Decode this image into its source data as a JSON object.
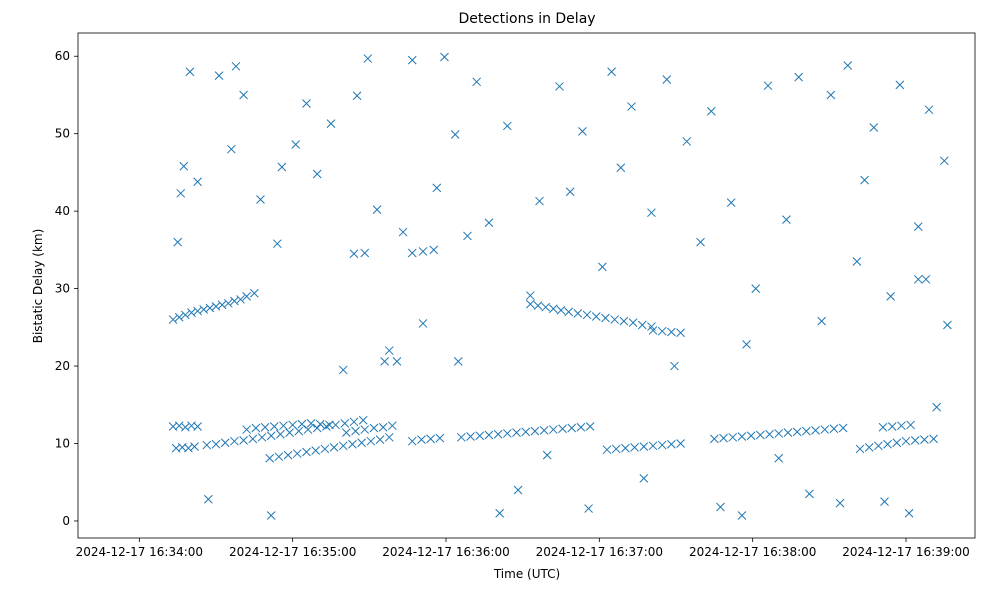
{
  "chart_data": {
    "type": "scatter",
    "title": "Detections in Delay",
    "xlabel": "Time (UTC)",
    "ylabel": "Bistatic Delay (km)",
    "x_start": "2024-12-17 16:34:00",
    "xlim": [
      -0.4,
      5.45
    ],
    "ylim": [
      -2.2,
      63
    ],
    "x_ticks": [
      {
        "x": 0,
        "label": "2024-12-17 16:34:00"
      },
      {
        "x": 1,
        "label": "2024-12-17 16:35:00"
      },
      {
        "x": 2,
        "label": "2024-12-17 16:36:00"
      },
      {
        "x": 3,
        "label": "2024-12-17 16:37:00"
      },
      {
        "x": 4,
        "label": "2024-12-17 16:38:00"
      },
      {
        "x": 5,
        "label": "2024-12-17 16:39:00"
      }
    ],
    "y_ticks": [
      0,
      10,
      20,
      30,
      40,
      50,
      60
    ],
    "grid": false,
    "marker": "x",
    "color": "#1f77b4",
    "series": [
      {
        "points": [
          [
            0.22,
            26.0
          ],
          [
            0.26,
            26.3
          ],
          [
            0.3,
            26.6
          ],
          [
            0.34,
            26.9
          ],
          [
            0.38,
            27.1
          ],
          [
            0.42,
            27.3
          ],
          [
            0.46,
            27.5
          ],
          [
            0.5,
            27.7
          ],
          [
            0.54,
            27.9
          ],
          [
            0.58,
            28.1
          ],
          [
            0.62,
            28.4
          ],
          [
            0.66,
            28.6
          ],
          [
            0.7,
            29.0
          ],
          [
            0.75,
            29.4
          ],
          [
            0.22,
            12.2
          ],
          [
            0.26,
            12.3
          ],
          [
            0.3,
            12.1
          ],
          [
            0.34,
            12.3
          ],
          [
            0.38,
            12.2
          ],
          [
            0.24,
            9.4
          ],
          [
            0.28,
            9.5
          ],
          [
            0.32,
            9.4
          ],
          [
            0.36,
            9.6
          ],
          [
            0.44,
            9.8
          ],
          [
            0.5,
            9.9
          ],
          [
            0.56,
            10.1
          ],
          [
            0.62,
            10.3
          ],
          [
            0.68,
            10.4
          ],
          [
            0.74,
            10.6
          ],
          [
            0.8,
            10.8
          ],
          [
            0.86,
            11.0
          ],
          [
            0.92,
            11.2
          ],
          [
            0.98,
            11.4
          ],
          [
            1.04,
            11.6
          ],
          [
            1.1,
            11.8
          ],
          [
            1.16,
            12.0
          ],
          [
            1.22,
            12.2
          ],
          [
            1.28,
            12.4
          ],
          [
            1.34,
            12.6
          ],
          [
            1.4,
            12.8
          ],
          [
            1.46,
            13.0
          ],
          [
            0.7,
            11.8
          ],
          [
            0.76,
            12.0
          ],
          [
            0.82,
            12.1
          ],
          [
            0.88,
            12.2
          ],
          [
            0.94,
            12.3
          ],
          [
            1.0,
            12.4
          ],
          [
            1.06,
            12.5
          ],
          [
            1.12,
            12.6
          ],
          [
            1.18,
            12.5
          ],
          [
            1.24,
            12.4
          ],
          [
            0.85,
            8.1
          ],
          [
            0.91,
            8.3
          ],
          [
            0.97,
            8.5
          ],
          [
            1.03,
            8.7
          ],
          [
            1.09,
            8.9
          ],
          [
            1.15,
            9.1
          ],
          [
            1.21,
            9.3
          ],
          [
            1.27,
            9.5
          ],
          [
            1.33,
            9.7
          ],
          [
            1.39,
            9.9
          ],
          [
            1.45,
            10.1
          ],
          [
            1.51,
            10.3
          ],
          [
            1.57,
            10.5
          ],
          [
            1.63,
            10.8
          ],
          [
            1.35,
            11.4
          ],
          [
            1.41,
            11.6
          ],
          [
            1.47,
            11.8
          ],
          [
            1.53,
            12.0
          ],
          [
            1.59,
            12.1
          ],
          [
            1.65,
            12.3
          ],
          [
            1.78,
            10.3
          ],
          [
            1.84,
            10.5
          ],
          [
            1.9,
            10.6
          ],
          [
            1.96,
            10.7
          ],
          [
            2.1,
            10.8
          ],
          [
            2.16,
            10.9
          ],
          [
            2.22,
            11.0
          ],
          [
            2.28,
            11.1
          ],
          [
            2.34,
            11.2
          ],
          [
            2.4,
            11.3
          ],
          [
            2.46,
            11.4
          ],
          [
            2.52,
            11.5
          ],
          [
            2.58,
            11.6
          ],
          [
            2.64,
            11.7
          ],
          [
            2.7,
            11.8
          ],
          [
            2.76,
            11.9
          ],
          [
            2.82,
            12.0
          ],
          [
            2.88,
            12.1
          ],
          [
            2.94,
            12.2
          ],
          [
            2.55,
            28.0
          ],
          [
            2.6,
            27.8
          ],
          [
            2.65,
            27.6
          ],
          [
            2.7,
            27.4
          ],
          [
            2.75,
            27.2
          ],
          [
            2.8,
            27.0
          ],
          [
            2.86,
            26.8
          ],
          [
            2.92,
            26.6
          ],
          [
            2.98,
            26.4
          ],
          [
            3.04,
            26.2
          ],
          [
            3.1,
            26.0
          ],
          [
            3.16,
            25.8
          ],
          [
            3.22,
            25.6
          ],
          [
            3.28,
            25.3
          ],
          [
            3.34,
            25.1
          ],
          [
            3.35,
            24.6
          ],
          [
            3.41,
            24.5
          ],
          [
            3.47,
            24.4
          ],
          [
            3.53,
            24.3
          ],
          [
            3.05,
            9.2
          ],
          [
            3.11,
            9.3
          ],
          [
            3.17,
            9.4
          ],
          [
            3.23,
            9.5
          ],
          [
            3.29,
            9.6
          ],
          [
            3.35,
            9.7
          ],
          [
            3.41,
            9.8
          ],
          [
            3.47,
            9.9
          ],
          [
            3.53,
            10.0
          ],
          [
            3.75,
            10.6
          ],
          [
            3.81,
            10.7
          ],
          [
            3.87,
            10.8
          ],
          [
            3.93,
            10.9
          ],
          [
            3.99,
            11.0
          ],
          [
            4.05,
            11.1
          ],
          [
            4.11,
            11.2
          ],
          [
            4.17,
            11.3
          ],
          [
            4.23,
            11.4
          ],
          [
            4.29,
            11.5
          ],
          [
            4.35,
            11.6
          ],
          [
            4.41,
            11.7
          ],
          [
            4.47,
            11.8
          ],
          [
            4.53,
            11.9
          ],
          [
            4.59,
            12.0
          ],
          [
            4.7,
            9.3
          ],
          [
            4.76,
            9.5
          ],
          [
            4.82,
            9.7
          ],
          [
            4.88,
            9.9
          ],
          [
            4.94,
            10.1
          ],
          [
            5.0,
            10.3
          ],
          [
            5.06,
            10.4
          ],
          [
            5.12,
            10.5
          ],
          [
            5.18,
            10.6
          ],
          [
            4.85,
            12.1
          ],
          [
            4.91,
            12.2
          ],
          [
            4.97,
            12.3
          ],
          [
            5.03,
            12.4
          ],
          [
            1.4,
            34.5
          ],
          [
            1.47,
            34.6
          ],
          [
            1.78,
            34.6
          ],
          [
            1.85,
            34.8
          ],
          [
            1.92,
            35.0
          ],
          [
            1.6,
            20.6
          ],
          [
            1.68,
            20.6
          ],
          [
            2.08,
            20.6
          ],
          [
            5.08,
            31.2
          ],
          [
            5.13,
            31.2
          ],
          [
            0.25,
            36.0
          ],
          [
            0.27,
            42.3
          ],
          [
            0.29,
            45.8
          ],
          [
            0.33,
            58.0
          ],
          [
            0.38,
            43.8
          ],
          [
            0.45,
            2.8
          ],
          [
            0.52,
            57.5
          ],
          [
            0.6,
            48.0
          ],
          [
            0.63,
            58.7
          ],
          [
            0.68,
            55.0
          ],
          [
            0.79,
            41.5
          ],
          [
            0.86,
            0.7
          ],
          [
            0.9,
            35.8
          ],
          [
            0.93,
            45.7
          ],
          [
            1.02,
            48.6
          ],
          [
            1.09,
            53.9
          ],
          [
            1.16,
            44.8
          ],
          [
            1.25,
            51.3
          ],
          [
            1.33,
            19.5
          ],
          [
            1.42,
            54.9
          ],
          [
            1.49,
            59.7
          ],
          [
            1.55,
            40.2
          ],
          [
            1.63,
            22.0
          ],
          [
            1.72,
            37.3
          ],
          [
            1.78,
            59.5
          ],
          [
            1.85,
            25.5
          ],
          [
            1.94,
            43.0
          ],
          [
            1.99,
            59.9
          ],
          [
            2.06,
            49.9
          ],
          [
            2.14,
            36.8
          ],
          [
            2.2,
            56.7
          ],
          [
            2.28,
            38.5
          ],
          [
            2.35,
            1.0
          ],
          [
            2.4,
            51.0
          ],
          [
            2.47,
            4.0
          ],
          [
            2.55,
            29.1
          ],
          [
            2.61,
            41.3
          ],
          [
            2.66,
            8.5
          ],
          [
            2.74,
            56.1
          ],
          [
            2.81,
            42.5
          ],
          [
            2.89,
            50.3
          ],
          [
            2.93,
            1.6
          ],
          [
            3.02,
            32.8
          ],
          [
            3.08,
            58.0
          ],
          [
            3.14,
            45.6
          ],
          [
            3.21,
            53.5
          ],
          [
            3.29,
            5.5
          ],
          [
            3.34,
            39.8
          ],
          [
            3.44,
            57.0
          ],
          [
            3.49,
            20.0
          ],
          [
            3.57,
            49.0
          ],
          [
            3.66,
            36.0
          ],
          [
            3.73,
            52.9
          ],
          [
            3.79,
            1.8
          ],
          [
            3.86,
            41.1
          ],
          [
            3.93,
            0.7
          ],
          [
            3.96,
            22.8
          ],
          [
            4.02,
            30.0
          ],
          [
            4.1,
            56.2
          ],
          [
            4.17,
            8.1
          ],
          [
            4.22,
            38.9
          ],
          [
            4.3,
            57.3
          ],
          [
            4.37,
            3.5
          ],
          [
            4.45,
            25.8
          ],
          [
            4.51,
            55.0
          ],
          [
            4.57,
            2.3
          ],
          [
            4.62,
            58.8
          ],
          [
            4.68,
            33.5
          ],
          [
            4.73,
            44.0
          ],
          [
            4.79,
            50.8
          ],
          [
            4.86,
            2.5
          ],
          [
            4.9,
            29.0
          ],
          [
            4.96,
            56.3
          ],
          [
            5.02,
            1.0
          ],
          [
            5.08,
            38.0
          ],
          [
            5.15,
            53.1
          ],
          [
            5.2,
            14.7
          ],
          [
            5.25,
            46.5
          ],
          [
            5.27,
            25.3
          ]
        ]
      }
    ]
  }
}
